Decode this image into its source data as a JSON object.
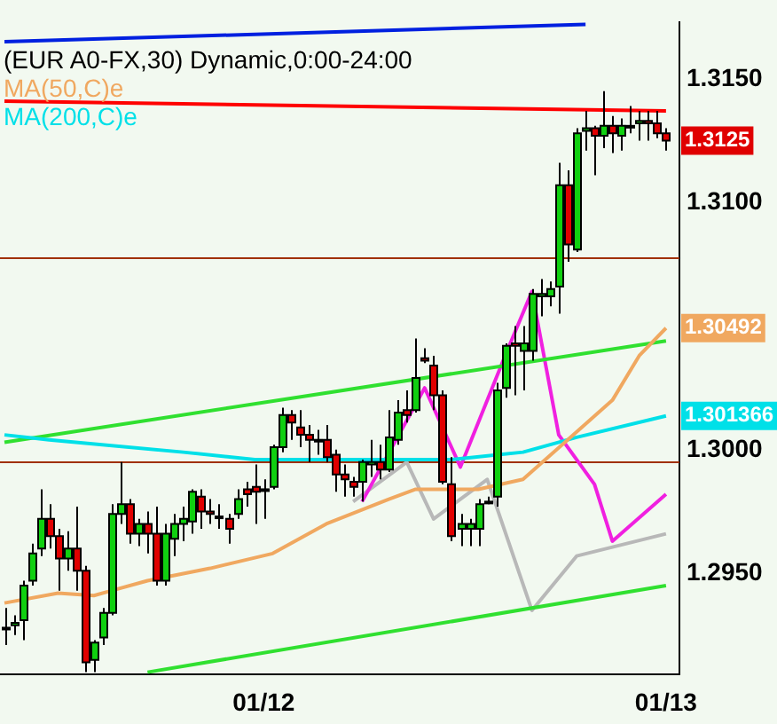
{
  "chart_data": {
    "type": "candlestick",
    "title": "(EUR A0-FX,30) Dynamic,0:00-24:00",
    "categories": [
      null,
      null,
      null,
      null,
      null,
      null,
      null,
      null,
      null,
      null,
      null,
      null,
      null,
      null,
      null,
      null,
      null,
      null,
      null,
      null,
      null,
      null,
      null,
      null,
      null,
      null,
      null,
      null,
      null,
      "01/12",
      null,
      null,
      null,
      null,
      null,
      null,
      null,
      null,
      null,
      null,
      null,
      null,
      null,
      null,
      null,
      null,
      null,
      null,
      null,
      null,
      null,
      null,
      null,
      null,
      null,
      null,
      null,
      null,
      null,
      null,
      null,
      null,
      null,
      null,
      null,
      null,
      null,
      null,
      null,
      null,
      null,
      null,
      null,
      null,
      "01/13"
    ],
    "ohlc": [
      [
        1.2928,
        1.2936,
        1.2921,
        1.2928
      ],
      [
        1.2929,
        1.2933,
        1.2925,
        1.293
      ],
      [
        1.2931,
        1.2947,
        1.2923,
        1.2945
      ],
      [
        1.2947,
        1.2962,
        1.2945,
        1.2958
      ],
      [
        1.296,
        1.2984,
        1.2957,
        1.2972
      ],
      [
        1.2972,
        1.2978,
        1.296,
        1.2965
      ],
      [
        1.2965,
        1.2968,
        1.2943,
        1.2956
      ],
      [
        1.2956,
        1.2967,
        1.2951,
        1.296
      ],
      [
        1.296,
        1.2977,
        1.2943,
        1.2951
      ],
      [
        1.2951,
        1.2953,
        1.291,
        1.2914
      ],
      [
        1.2915,
        1.2923,
        1.291,
        1.2922
      ],
      [
        1.2924,
        1.2936,
        1.2921,
        1.2934
      ],
      [
        1.2934,
        1.2978,
        1.2933,
        1.2974
      ],
      [
        1.2974,
        1.2995,
        1.297,
        1.2978
      ],
      [
        1.2978,
        1.298,
        1.2962,
        1.2966
      ],
      [
        1.2966,
        1.2972,
        1.2961,
        1.297
      ],
      [
        1.297,
        1.2975,
        1.2958,
        1.2966
      ],
      [
        1.2966,
        1.2977,
        1.2945,
        1.2947
      ],
      [
        1.2947,
        1.297,
        1.2945,
        1.2966
      ],
      [
        1.2964,
        1.2974,
        1.2957,
        1.297
      ],
      [
        1.297,
        1.2977,
        1.2963,
        1.2972
      ],
      [
        1.2971,
        1.2984,
        1.2966,
        1.2983
      ],
      [
        1.2981,
        1.2984,
        1.2968,
        1.2975
      ],
      [
        1.2975,
        1.298,
        1.297,
        1.2974
      ],
      [
        1.2973,
        1.2978,
        1.2968,
        1.2973
      ],
      [
        1.2972,
        1.2974,
        1.2962,
        1.2968
      ],
      [
        1.2974,
        1.2984,
        1.2972,
        1.298
      ],
      [
        1.2984,
        1.2987,
        1.2977,
        1.2982
      ],
      [
        1.2985,
        1.2994,
        1.297,
        1.2983
      ],
      [
        1.2984,
        1.2988,
        1.2972,
        1.2984
      ],
      [
        1.2985,
        1.3002,
        1.2984,
        1.3001
      ],
      [
        1.3001,
        1.3017,
        1.2999,
        1.3014
      ],
      [
        1.3014,
        1.3016,
        1.3004,
        1.3011
      ],
      [
        1.3009,
        1.3016,
        1.3001,
        1.3006
      ],
      [
        1.3006,
        1.301,
        1.2995,
        1.3004
      ],
      [
        1.3004,
        1.3008,
        1.2998,
        1.3004
      ],
      [
        1.3004,
        1.301,
        1.2995,
        1.2997
      ],
      [
        1.2998,
        1.3,
        1.2983,
        1.299
      ],
      [
        1.299,
        1.2994,
        1.2981,
        1.2988
      ],
      [
        1.2987,
        1.2989,
        1.2981,
        1.2985
      ],
      [
        1.2987,
        1.2996,
        1.2979,
        1.2995
      ],
      [
        1.2994,
        1.3004,
        1.2989,
        1.2995
      ],
      [
        1.2995,
        1.3002,
        1.2988,
        1.2992
      ],
      [
        1.2992,
        1.3016,
        1.2991,
        1.3005
      ],
      [
        1.3004,
        1.302,
        1.3002,
        1.3015
      ],
      [
        1.3016,
        1.3024,
        1.3011,
        1.3014
      ],
      [
        1.3016,
        1.3045,
        1.3015,
        1.3029
      ],
      [
        1.3037,
        1.3041,
        1.3035,
        1.3036
      ],
      [
        1.3034,
        1.3038,
        1.3016,
        1.3022
      ],
      [
        1.3022,
        1.3024,
        1.2986,
        1.2987
      ],
      [
        1.2986,
        1.2997,
        1.2963,
        1.2965
      ],
      [
        1.2968,
        1.2974,
        1.2961,
        1.297
      ],
      [
        1.2968,
        1.2972,
        1.2961,
        1.297
      ],
      [
        1.2968,
        1.298,
        1.2961,
        1.2978
      ],
      [
        1.2979,
        1.2981,
        1.2978,
        1.2979
      ],
      [
        1.2981,
        1.3027,
        1.2977,
        1.3024
      ],
      [
        1.3025,
        1.3043,
        1.3021,
        1.3042
      ],
      [
        1.3043,
        1.305,
        1.3022,
        1.3042
      ],
      [
        1.304,
        1.305,
        1.3024,
        1.3043
      ],
      [
        1.304,
        1.3065,
        1.3036,
        1.3063
      ],
      [
        1.3062,
        1.3069,
        1.3054,
        1.3063
      ],
      [
        1.3062,
        1.3068,
        1.3058,
        1.3065
      ],
      [
        1.3066,
        1.3116,
        1.3055,
        1.3107
      ],
      [
        1.3107,
        1.3113,
        1.3076,
        1.3083
      ],
      [
        1.3081,
        1.313,
        1.308,
        1.3128
      ],
      [
        1.3129,
        1.3137,
        1.3121,
        1.313
      ],
      [
        1.313,
        1.3131,
        1.3111,
        1.3127
      ],
      [
        1.3127,
        1.3145,
        1.3122,
        1.3131
      ],
      [
        1.3131,
        1.3135,
        1.312,
        1.3128
      ],
      [
        1.3127,
        1.3134,
        1.3121,
        1.3131
      ],
      [
        1.3131,
        1.3139,
        1.3128,
        1.3131
      ],
      [
        1.3132,
        1.3137,
        1.3125,
        1.3133
      ],
      [
        1.3133,
        1.3137,
        1.3125,
        1.3132
      ],
      [
        1.3132,
        1.3137,
        1.3126,
        1.3128
      ],
      [
        1.3128,
        1.313,
        1.3121,
        1.3125
      ]
    ],
    "series": [
      {
        "type": "line",
        "name": "MA(50,C)e",
        "color": "#f0a860",
        "value_labels": [
          null,
          null,
          null,
          null,
          null,
          null,
          null,
          null,
          null,
          null,
          null,
          null,
          null,
          null,
          null,
          null,
          null,
          null,
          null,
          null,
          null,
          null,
          null,
          null,
          null,
          null,
          null,
          null,
          null,
          null,
          null,
          null,
          null,
          null,
          null,
          null,
          null,
          null,
          null,
          null,
          null,
          null,
          null,
          null,
          null,
          null,
          null,
          null,
          null,
          null,
          null,
          null,
          null,
          null,
          null,
          null,
          null,
          null,
          null,
          null,
          null,
          null,
          null,
          null,
          null,
          null,
          null,
          null,
          null,
          null,
          null,
          null,
          null,
          null,
          "1.30492"
        ],
        "values": [
          1.2938,
          null,
          null,
          null,
          null,
          null,
          1.2942,
          null,
          null,
          null,
          1.2941,
          null,
          1.2943,
          null,
          null,
          null,
          1.2947,
          null,
          null,
          null,
          null,
          null,
          null,
          1.2952,
          null,
          null,
          null,
          null,
          null,
          null,
          1.2958,
          null,
          null,
          null,
          null,
          null,
          1.297,
          null,
          null,
          null,
          null,
          null,
          null,
          1.298,
          null,
          null,
          1.2984,
          null,
          null,
          null,
          null,
          null,
          null,
          1.2984,
          null,
          null,
          null,
          null,
          1.2988,
          null,
          null,
          null,
          null,
          1.3004,
          null,
          null,
          null,
          null,
          1.302,
          null,
          null,
          1.3038,
          null,
          null,
          1.30492
        ]
      },
      {
        "type": "line",
        "name": "MA(200,C)e",
        "color": "#00e0e8",
        "value_labels": [
          null,
          null,
          null,
          null,
          null,
          null,
          null,
          null,
          null,
          null,
          null,
          null,
          null,
          null,
          null,
          null,
          null,
          null,
          null,
          null,
          null,
          null,
          null,
          null,
          null,
          null,
          null,
          null,
          null,
          null,
          null,
          null,
          null,
          null,
          null,
          null,
          null,
          null,
          null,
          null,
          null,
          null,
          null,
          null,
          null,
          null,
          null,
          null,
          null,
          null,
          null,
          null,
          null,
          null,
          null,
          null,
          null,
          null,
          null,
          null,
          null,
          null,
          null,
          null,
          null,
          null,
          null,
          null,
          null,
          null,
          null,
          null,
          null,
          null,
          "1.301366"
        ],
        "values": [
          1.3006,
          null,
          null,
          null,
          null,
          1.3004,
          null,
          null,
          null,
          null,
          null,
          null,
          null,
          null,
          null,
          null,
          null,
          null,
          null,
          null,
          1.2999,
          null,
          null,
          null,
          null,
          null,
          null,
          null,
          1.2996,
          null,
          null,
          null,
          null,
          null,
          null,
          null,
          null,
          null,
          null,
          null,
          1.2996,
          null,
          null,
          null,
          null,
          null,
          null,
          null,
          null,
          null,
          1.2996,
          null,
          null,
          null,
          null,
          null,
          null,
          null,
          1.2999,
          null,
          null,
          null,
          null,
          null,
          1.3005,
          null,
          null,
          null,
          null,
          null,
          null,
          null,
          null,
          null,
          1.301366
        ]
      },
      {
        "type": "line",
        "color": "#ff0000",
        "values": [
          1.3141,
          null,
          null,
          null,
          null,
          null,
          null,
          null,
          null,
          null,
          null,
          null,
          null,
          null,
          null,
          null,
          null,
          null,
          null,
          null,
          null,
          null,
          null,
          null,
          null,
          null,
          null,
          null,
          null,
          null,
          null,
          null,
          null,
          null,
          null,
          null,
          null,
          null,
          null,
          null,
          null,
          null,
          null,
          null,
          null,
          null,
          null,
          null,
          null,
          null,
          null,
          null,
          null,
          null,
          null,
          null,
          null,
          null,
          null,
          null,
          null,
          null,
          null,
          null,
          null,
          null,
          null,
          null,
          null,
          null,
          null,
          null,
          null,
          null,
          1.3137
        ]
      },
      {
        "type": "line",
        "color": "#0020e0",
        "values": [
          1.3165,
          null,
          null,
          null,
          null,
          null,
          null,
          null,
          null,
          null,
          null,
          null,
          null,
          null,
          null,
          null,
          null,
          null,
          null,
          null,
          null,
          null,
          null,
          null,
          null,
          null,
          null,
          null,
          null,
          null,
          null,
          null,
          null,
          null,
          null,
          null,
          null,
          null,
          null,
          null,
          null,
          null,
          null,
          null,
          null,
          null,
          null,
          null,
          null,
          null,
          null,
          null,
          null,
          null,
          null,
          null,
          null,
          null,
          null,
          null,
          null,
          null,
          null,
          null,
          null,
          1.3172,
          null,
          null,
          null,
          null,
          null,
          null,
          null,
          null,
          null
        ]
      },
      {
        "type": "line",
        "color": "#30e030",
        "values": [
          1.3003,
          null,
          null,
          null,
          null,
          null,
          null,
          null,
          null,
          null,
          null,
          null,
          null,
          null,
          null,
          null,
          null,
          null,
          null,
          null,
          null,
          null,
          null,
          null,
          null,
          null,
          null,
          null,
          null,
          null,
          null,
          null,
          null,
          null,
          null,
          null,
          null,
          null,
          null,
          null,
          null,
          null,
          null,
          null,
          null,
          null,
          null,
          null,
          null,
          null,
          null,
          null,
          null,
          null,
          null,
          null,
          null,
          null,
          null,
          null,
          null,
          null,
          null,
          null,
          null,
          null,
          null,
          null,
          null,
          null,
          null,
          null,
          null,
          null,
          1.3044
        ]
      },
      {
        "type": "line",
        "color": "#30e030",
        "values": [
          null,
          null,
          null,
          null,
          null,
          null,
          null,
          null,
          null,
          null,
          null,
          null,
          null,
          null,
          null,
          null,
          1.291,
          null,
          null,
          null,
          null,
          null,
          null,
          null,
          null,
          null,
          null,
          null,
          null,
          null,
          null,
          null,
          null,
          null,
          null,
          null,
          null,
          null,
          null,
          null,
          null,
          null,
          null,
          null,
          null,
          null,
          null,
          null,
          null,
          null,
          null,
          null,
          null,
          null,
          null,
          null,
          null,
          null,
          null,
          null,
          null,
          null,
          null,
          null,
          null,
          null,
          null,
          null,
          null,
          null,
          null,
          null,
          null,
          null,
          1.2945
        ]
      },
      {
        "type": "line",
        "color": "#f020e0",
        "values": [
          null,
          null,
          null,
          null,
          null,
          null,
          null,
          null,
          null,
          null,
          null,
          null,
          null,
          null,
          null,
          null,
          null,
          null,
          null,
          null,
          null,
          null,
          null,
          null,
          null,
          null,
          null,
          null,
          null,
          null,
          null,
          null,
          null,
          null,
          null,
          null,
          null,
          null,
          null,
          null,
          1.2979,
          null,
          null,
          null,
          null,
          null,
          null,
          1.3025,
          null,
          null,
          null,
          1.2993,
          null,
          null,
          null,
          null,
          1.3038,
          null,
          null,
          1.3064,
          null,
          null,
          1.3006,
          null,
          null,
          null,
          1.2986,
          null,
          1.2963,
          null,
          null,
          null,
          null,
          null,
          1.2982
        ]
      },
      {
        "type": "line",
        "color": "#b8b8b8",
        "values": [
          null,
          null,
          null,
          null,
          null,
          null,
          null,
          null,
          null,
          null,
          null,
          null,
          null,
          null,
          null,
          null,
          null,
          null,
          null,
          null,
          null,
          null,
          null,
          null,
          null,
          null,
          null,
          null,
          null,
          null,
          null,
          null,
          null,
          null,
          null,
          null,
          null,
          null,
          null,
          1.2979,
          null,
          null,
          null,
          null,
          null,
          1.2995,
          null,
          null,
          1.2972,
          null,
          null,
          null,
          null,
          null,
          1.2988,
          null,
          null,
          null,
          null,
          1.2935,
          null,
          null,
          null,
          null,
          1.2957,
          null,
          null,
          null,
          null,
          null,
          null,
          null,
          null,
          null,
          1.2966
        ]
      }
    ],
    "ref_lines": [
      {
        "axis": "y",
        "value": 1.3078,
        "color": "#a03000"
      },
      {
        "axis": "y",
        "value": 1.2995,
        "color": "#a03000"
      }
    ],
    "value_labels": [
      null,
      null,
      null,
      null,
      null,
      null,
      null,
      null,
      null,
      null,
      null,
      null,
      null,
      null,
      null,
      null,
      null,
      null,
      null,
      null,
      null,
      null,
      null,
      null,
      null,
      null,
      null,
      null,
      null,
      null,
      null,
      null,
      null,
      null,
      null,
      null,
      null,
      null,
      null,
      null,
      null,
      null,
      null,
      null,
      null,
      null,
      null,
      null,
      null,
      null,
      null,
      null,
      null,
      null,
      null,
      null,
      null,
      null,
      null,
      null,
      null,
      null,
      null,
      null,
      null,
      null,
      null,
      null,
      null,
      null,
      null,
      null,
      null,
      null,
      "1.3125"
    ],
    "ylim": [
      1.2909,
      1.3173
    ],
    "yticks": [
      {
        "value": 1.295,
        "label": "1.2950"
      },
      {
        "value": 1.3,
        "label": "1.3000"
      },
      {
        "value": 1.31,
        "label": "1.3100"
      },
      {
        "value": 1.315,
        "label": "1.3150"
      }
    ],
    "legend": "top left",
    "marker": "none",
    "line_style": "solid",
    "grid": false
  }
}
